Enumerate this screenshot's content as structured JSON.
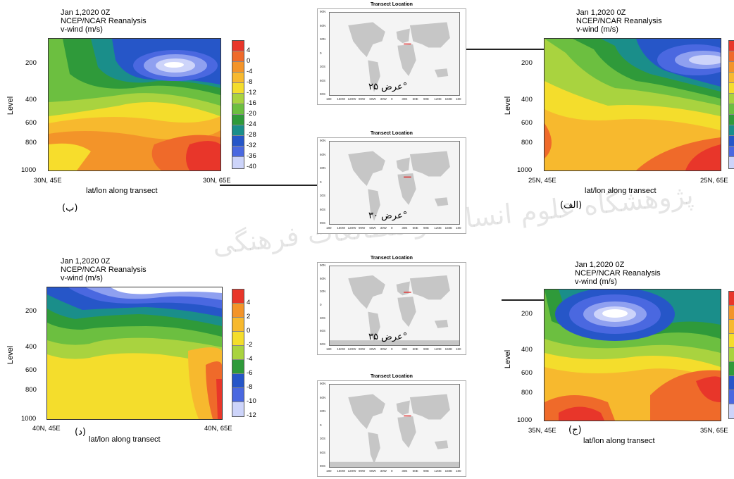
{
  "watermark": "پژوهشگاه علوم انسانی و مطالعات فرهنگی",
  "map_title": "Transect Location",
  "map_lat_ticks": [
    "90N",
    "60N",
    "30N",
    "0",
    "30S",
    "60S",
    "90S"
  ],
  "map_lon_ticks": [
    "180",
    "150W",
    "120W",
    "90W",
    "60W",
    "30W",
    "0",
    "30E",
    "60E",
    "90E",
    "120E",
    "150E",
    "180"
  ],
  "map_labels": [
    "عرض ۲۵°",
    "عرض ۳۰°",
    "عرض ۳۵°",
    ""
  ],
  "chart_data": [
    {
      "type": "heatmap",
      "panel_tag": "(ب)",
      "title": [
        "Jan 1,2020 0Z",
        "NCEP/NCAR Reanalysis",
        "v-wind (m/s)"
      ],
      "ylabel": "Level",
      "xlabel": "lat/lon along transect",
      "yticks": [
        "200",
        "400",
        "600",
        "800",
        "1000"
      ],
      "x_start": "30N, 45E",
      "x_end": "30N, 65E",
      "colorbar_labels": [
        "4",
        "0",
        "-4",
        "-8",
        "-12",
        "-16",
        "-20",
        "-24",
        "-28",
        "-32",
        "-36",
        "-40"
      ]
    },
    {
      "type": "heatmap",
      "panel_tag": "(الف)",
      "title": [
        "Jan 1,2020 0Z",
        "NCEP/NCAR Reanalysis",
        "v-wind (m/s)"
      ],
      "ylabel": "Level",
      "xlabel": "lat/lon along transect",
      "yticks": [
        "200",
        "400",
        "600",
        "800",
        "1000"
      ],
      "x_start": "25N, 45E",
      "x_end": "25N, 65E",
      "colorbar_labels": []
    },
    {
      "type": "heatmap",
      "panel_tag": "(د)",
      "title": [
        "Jan 1,2020 0Z",
        "NCEP/NCAR Reanalysis",
        "v-wind (m/s)"
      ],
      "ylabel": "Level",
      "xlabel": "lat/lon along transect",
      "yticks": [
        "200",
        "400",
        "600",
        "800",
        "1000"
      ],
      "x_start": "40N, 45E",
      "x_end": "40N, 65E",
      "colorbar_labels": [
        "4",
        "2",
        "0",
        "-2",
        "-4",
        "-6",
        "-8",
        "-10",
        "-12"
      ]
    },
    {
      "type": "heatmap",
      "panel_tag": "(ج)",
      "title": [
        "Jan 1,2020 0Z",
        "NCEP/NCAR Reanalysis",
        "v-wind (m/s)"
      ],
      "ylabel": "Level",
      "xlabel": "lat/lon along transect",
      "yticks": [
        "200",
        "400",
        "600",
        "800",
        "1000"
      ],
      "x_start": "35N, 45E",
      "x_end": "35N, 65E",
      "colorbar_labels": []
    }
  ]
}
